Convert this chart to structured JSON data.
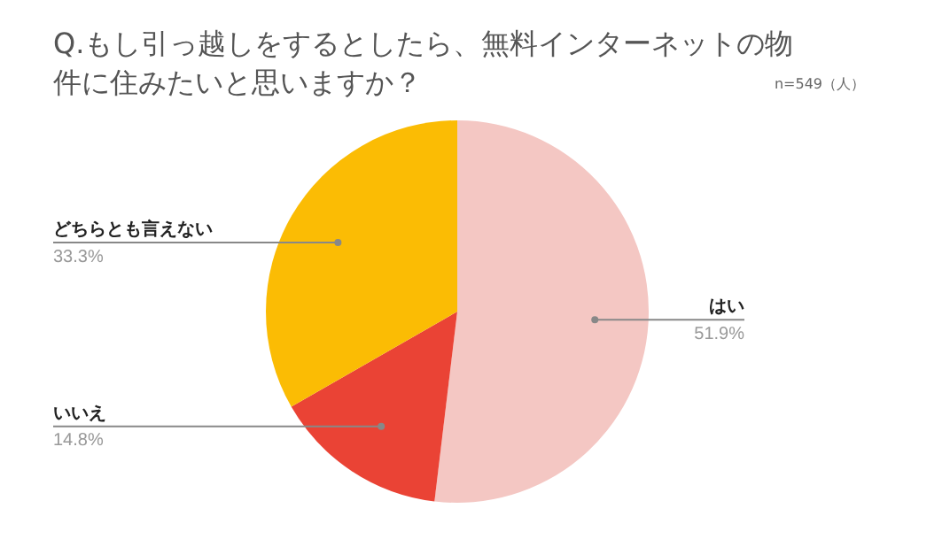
{
  "chart_data": {
    "type": "pie",
    "title": "Q.もし引っ越しをするとしたら、無料インターネットの物件に住みたいと思いますか？",
    "annotations": [
      "n=549（人）"
    ],
    "categories": [
      "はい",
      "いいえ",
      "どちらとも言えない"
    ],
    "values": [
      51.9,
      14.8,
      33.3
    ],
    "value_labels": [
      "51.9%",
      "14.8%",
      "33.3%"
    ],
    "colors": [
      "#f4c7c3",
      "#ea4335",
      "#fbbc04"
    ],
    "legend": false
  }
}
